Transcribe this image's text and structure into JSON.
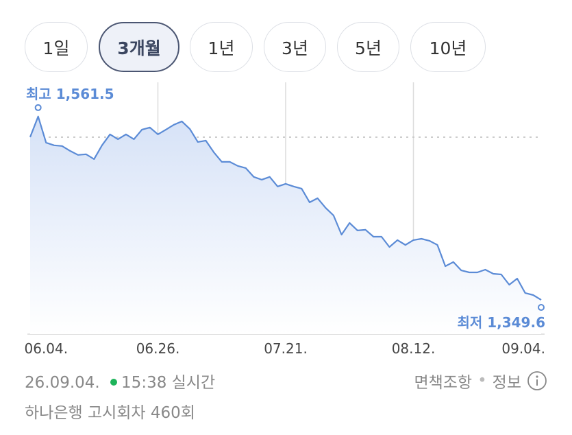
{
  "tabs": {
    "items": [
      "1일",
      "3개월",
      "1년",
      "3년",
      "5년",
      "10년"
    ],
    "selected": "3개월"
  },
  "chart_data": {
    "type": "line",
    "categories": [
      null,
      null,
      "06.04.",
      null,
      null,
      null,
      null,
      null,
      null,
      null,
      null,
      null,
      null,
      null,
      null,
      null,
      "06.26.",
      null,
      null,
      null,
      null,
      null,
      null,
      null,
      null,
      null,
      null,
      null,
      null,
      null,
      null,
      null,
      "07.21.",
      null,
      null,
      null,
      null,
      null,
      null,
      null,
      null,
      null,
      null,
      null,
      null,
      null,
      null,
      null,
      "08.12.",
      null,
      null,
      null,
      null,
      null,
      null,
      null,
      null,
      null,
      null,
      null,
      null,
      null,
      null,
      null,
      "09.04."
    ],
    "series": [
      {
        "color": "#5b8bd6",
        "values": [
          1537.7,
          1561.5,
          1531.3,
          1528.2,
          1527.4,
          1521.8,
          1517.1,
          1517.9,
          1512.3,
          1528.2,
          1540.9,
          1535.3,
          1540.9,
          1535.3,
          1546.4,
          1548.8,
          1540.9,
          1546.4,
          1552.0,
          1555.9,
          1547.2,
          1532.1,
          1533.7,
          1520.2,
          1509.1,
          1509.1,
          1504.4,
          1502.0,
          1491.7,
          1488.5,
          1491.7,
          1480.6,
          1483.7,
          1480.6,
          1478.2,
          1462.3,
          1467.1,
          1456.0,
          1447.2,
          1425.0,
          1438.5,
          1429.8,
          1430.6,
          1422.6,
          1422.6,
          1410.7,
          1418.7,
          1413.1,
          1418.7,
          1420.2,
          1417.9,
          1413.1,
          1388.5,
          1393.3,
          1383.7,
          1381.4,
          1381.4,
          1384.5,
          1379.8,
          1379.0,
          1367.1,
          1374.2,
          1357.5,
          1355.2,
          1349.6
        ]
      }
    ],
    "ylim": [
      1310,
      1601
    ],
    "reference": 1537.7,
    "annotations": {
      "high": "최고 1,561.5",
      "low": "최저 1,349.6"
    }
  },
  "footer": {
    "date": "26.09.04.",
    "time": "15:38 실시간",
    "disclaimer": "면책조항",
    "info": "정보",
    "notice": "하나은행 고시회차 460회"
  }
}
